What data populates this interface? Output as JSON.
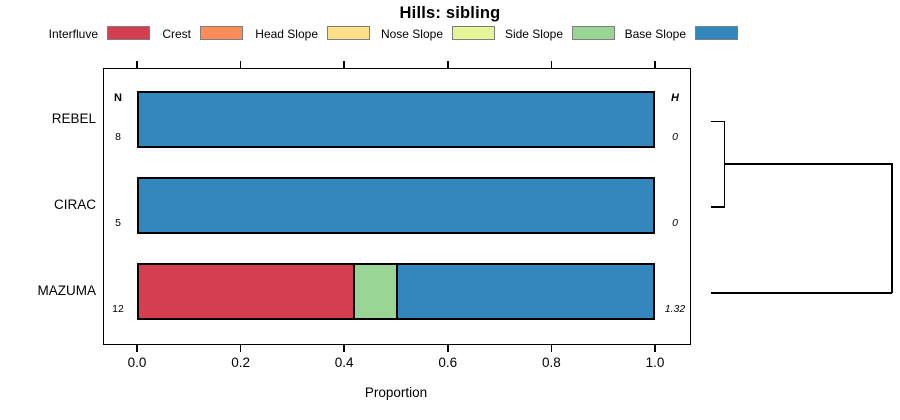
{
  "title": "Hills: sibling",
  "legend": {
    "items": [
      {
        "label": "Interfluve",
        "color": "#d53e4f"
      },
      {
        "label": "Crest",
        "color": "#fc8d59"
      },
      {
        "label": "Head Slope",
        "color": "#fee08b"
      },
      {
        "label": "Nose Slope",
        "color": "#e6f598"
      },
      {
        "label": "Side Slope",
        "color": "#99d594"
      },
      {
        "label": "Base Slope",
        "color": "#3288bd"
      }
    ]
  },
  "columns": {
    "n_header": "N",
    "h_header": "H"
  },
  "rows": [
    {
      "label": "REBEL",
      "n": "8",
      "h": "0"
    },
    {
      "label": "CIRAC",
      "n": "5",
      "h": "0"
    },
    {
      "label": "MAZUMA",
      "n": "12",
      "h": "1.32"
    }
  ],
  "axis": {
    "xlabel": "Proportion",
    "tick_labels": [
      "0.0",
      "0.2",
      "0.4",
      "0.6",
      "0.8",
      "1.0"
    ]
  },
  "chart_data": {
    "type": "bar",
    "orientation": "horizontal",
    "stacked": true,
    "title": "Hills: sibling",
    "xlabel": "Proportion",
    "xlim": [
      0,
      1
    ],
    "xticks": [
      0.0,
      0.2,
      0.4,
      0.6,
      0.8,
      1.0
    ],
    "grid": false,
    "legend_position": "top",
    "categories": [
      "REBEL",
      "CIRAC",
      "MAZUMA"
    ],
    "sample_sizes": [
      8,
      5,
      12
    ],
    "entropy_H": [
      0,
      0,
      1.32
    ],
    "series": [
      {
        "name": "Interfluve",
        "color": "#d53e4f",
        "values": [
          0,
          0,
          0.4167
        ]
      },
      {
        "name": "Crest",
        "color": "#fc8d59",
        "values": [
          0,
          0,
          0
        ]
      },
      {
        "name": "Head Slope",
        "color": "#fee08b",
        "values": [
          0,
          0,
          0
        ]
      },
      {
        "name": "Nose Slope",
        "color": "#e6f598",
        "values": [
          0,
          0,
          0
        ]
      },
      {
        "name": "Side Slope",
        "color": "#99d594",
        "values": [
          0,
          0,
          0.0833
        ]
      },
      {
        "name": "Base Slope",
        "color": "#3288bd",
        "values": [
          1,
          1,
          0.5
        ]
      }
    ],
    "dendrogram": {
      "description": "right-side cluster tree",
      "merges": [
        {
          "members": [
            "REBEL",
            "CIRAC"
          ],
          "height": "small"
        },
        {
          "members": [
            "REBEL+CIRAC",
            "MAZUMA"
          ],
          "height": "large"
        }
      ]
    },
    "bar_colors_note": "6-class Spectral palette"
  }
}
